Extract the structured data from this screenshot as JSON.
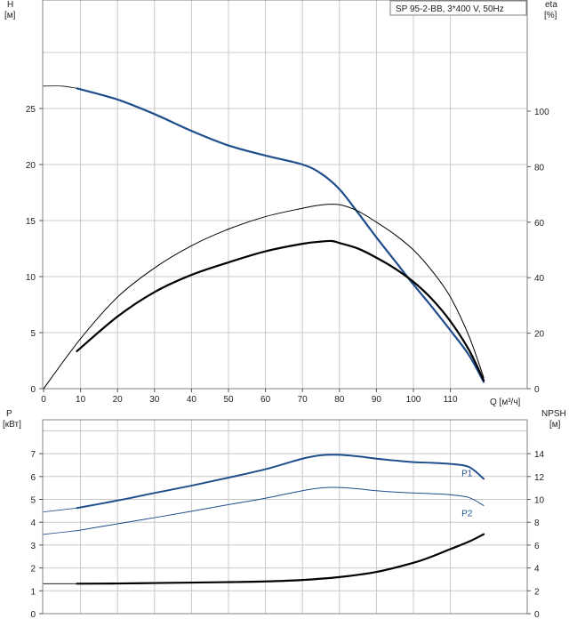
{
  "chart_data": [
    {
      "type": "line",
      "title": "SP 95-2-BB, 3*400 V, 50Hz",
      "xlabel": "Q [м³/ч]",
      "ylabel_left": "H\n[м]",
      "ylabel_right": "eta\n[%]",
      "xlim": [
        0,
        120
      ],
      "ylim_left": [
        0,
        35
      ],
      "ylim_right": [
        0,
        130
      ],
      "x_ticks": [
        0,
        10,
        20,
        30,
        40,
        50,
        60,
        70,
        80,
        90,
        100,
        110
      ],
      "y_ticks_left": [
        0,
        5,
        10,
        15,
        20,
        25
      ],
      "y_ticks_right": [
        0,
        20,
        40,
        60,
        80,
        100
      ],
      "grid": true,
      "series": [
        {
          "id": "head-thin",
          "axis": "left",
          "color": "#000000",
          "width": 0.8,
          "x": [
            0,
            5,
            9
          ],
          "y": [
            27.0,
            27.0,
            26.8
          ]
        },
        {
          "id": "head",
          "axis": "left",
          "color": "#1f4e8c",
          "width": 2.2,
          "x": [
            9,
            20,
            30,
            40,
            50,
            60,
            70,
            75,
            80,
            85,
            90,
            95,
            100,
            105,
            110,
            115,
            119
          ],
          "y": [
            26.8,
            25.8,
            24.5,
            23.0,
            21.7,
            20.8,
            20.0,
            19.2,
            17.8,
            15.7,
            13.5,
            11.4,
            9.3,
            7.3,
            5.2,
            3.0,
            0.6
          ]
        },
        {
          "id": "eta-pump",
          "axis": "right",
          "color": "#000000",
          "width": 1.0,
          "x": [
            0,
            10,
            20,
            30,
            40,
            50,
            60,
            70,
            75,
            80,
            85,
            90,
            95,
            100,
            105,
            110,
            115,
            119
          ],
          "y": [
            0,
            18,
            33,
            43.5,
            51.5,
            57.5,
            62,
            65,
            66.2,
            66.3,
            64,
            60,
            55.5,
            50,
            42.5,
            33,
            19,
            4
          ]
        },
        {
          "id": "eta-total",
          "axis": "right",
          "color": "#000000",
          "width": 2.2,
          "x": [
            9,
            20,
            30,
            40,
            50,
            60,
            70,
            75,
            78,
            80,
            85,
            90,
            95,
            100,
            105,
            110,
            115,
            119
          ],
          "y": [
            13.5,
            26,
            34.8,
            41,
            45.5,
            49.5,
            52.2,
            53,
            53.2,
            52.5,
            50.5,
            47.2,
            43.3,
            38.5,
            32.3,
            24.3,
            14,
            3
          ]
        }
      ]
    },
    {
      "type": "line",
      "ylabel_left": "P\n[кВт]",
      "ylabel_right": "NPSH\n[м]",
      "xlim": [
        0,
        120
      ],
      "ylim_left": [
        0,
        8
      ],
      "ylim_right": [
        0,
        16
      ],
      "y_ticks_left": [
        0,
        1,
        2,
        3,
        4,
        5,
        6,
        7
      ],
      "y_ticks_right": [
        0,
        2,
        4,
        6,
        8,
        10,
        12,
        14
      ],
      "grid": true,
      "series": [
        {
          "id": "p1-thin",
          "axis": "left",
          "color": "#1f4e8c",
          "width": 0.8,
          "x": [
            0,
            9
          ],
          "y": [
            4.45,
            4.62
          ]
        },
        {
          "id": "p1",
          "name": "P1",
          "axis": "left",
          "color": "#1f4e8c",
          "width": 2.0,
          "x": [
            9,
            20,
            30,
            40,
            50,
            60,
            70,
            75,
            80,
            85,
            90,
            95,
            100,
            105,
            110,
            115,
            119
          ],
          "y": [
            4.62,
            4.95,
            5.28,
            5.6,
            5.95,
            6.32,
            6.78,
            6.93,
            6.95,
            6.88,
            6.78,
            6.7,
            6.63,
            6.6,
            6.55,
            6.42,
            5.9
          ]
        },
        {
          "id": "p2-thin",
          "axis": "left",
          "color": "#1f4e8c",
          "width": 0.8,
          "x": [
            0,
            9
          ],
          "y": [
            3.47,
            3.63
          ]
        },
        {
          "id": "p2",
          "name": "P2",
          "axis": "left",
          "color": "#1f4e8c",
          "width": 1.0,
          "x": [
            9,
            20,
            30,
            40,
            50,
            60,
            70,
            75,
            80,
            85,
            90,
            95,
            100,
            105,
            110,
            115,
            119
          ],
          "y": [
            3.63,
            3.93,
            4.2,
            4.48,
            4.77,
            5.05,
            5.38,
            5.5,
            5.52,
            5.46,
            5.38,
            5.32,
            5.28,
            5.25,
            5.2,
            5.08,
            4.73
          ]
        },
        {
          "id": "npsh-thin",
          "axis": "right",
          "color": "#000000",
          "width": 0.8,
          "x": [
            0,
            9
          ],
          "y": [
            2.62,
            2.62
          ]
        },
        {
          "id": "npsh",
          "axis": "right",
          "color": "#000000",
          "width": 2.2,
          "x": [
            9,
            20,
            30,
            40,
            50,
            60,
            70,
            80,
            90,
            100,
            105,
            110,
            115,
            119
          ],
          "y": [
            2.62,
            2.64,
            2.68,
            2.72,
            2.76,
            2.82,
            2.95,
            3.2,
            3.65,
            4.45,
            5.0,
            5.65,
            6.3,
            6.95
          ]
        }
      ]
    }
  ]
}
